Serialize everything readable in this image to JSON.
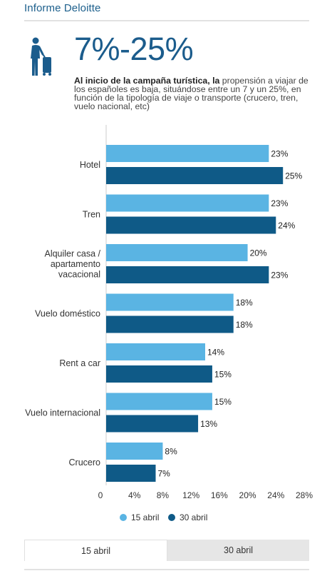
{
  "source": "Informe Deloitte",
  "headline": "7%-25%",
  "description_bold": "Al inicio de la campaña turística, la",
  "description_rest": " propensión a viajar de los españoles es baja, situándose entre un 7 y un 25%, en función de la tipología de viaje o transporte (crucero, tren, vuelo nacional, etc)",
  "icon": "traveler-with-suitcase-icon",
  "colors": {
    "series_1": "#5ab4e3",
    "series_2": "#0f5a87",
    "accent": "#1b5c8c"
  },
  "chart_data": {
    "type": "bar",
    "orientation": "horizontal",
    "categories": [
      "Hotel",
      "Tren",
      "Alquiler casa / apartamento vacacional",
      "Vuelo doméstico",
      "Rent a car",
      "Vuelo internacional",
      "Crucero"
    ],
    "series": [
      {
        "name": "15 abril",
        "values": [
          23,
          23,
          20,
          18,
          14,
          15,
          8
        ]
      },
      {
        "name": "30 abril",
        "values": [
          25,
          24,
          23,
          18,
          15,
          13,
          7
        ]
      }
    ],
    "data_labels": [
      [
        "23%",
        "23%",
        "20%",
        "18%",
        "14%",
        "15%",
        "8%"
      ],
      [
        "25%",
        "24%",
        "23%",
        "18%",
        "15%",
        "13%",
        "7%"
      ]
    ],
    "xlim": [
      0,
      28
    ],
    "x_ticks": [
      "0",
      "4%",
      "8%",
      "12%",
      "16%",
      "20%",
      "24%",
      "28%"
    ],
    "legend": "bottom",
    "grid": false
  },
  "tabs": [
    {
      "label": "15 abril",
      "active": true
    },
    {
      "label": "30 abril",
      "active": false
    }
  ]
}
